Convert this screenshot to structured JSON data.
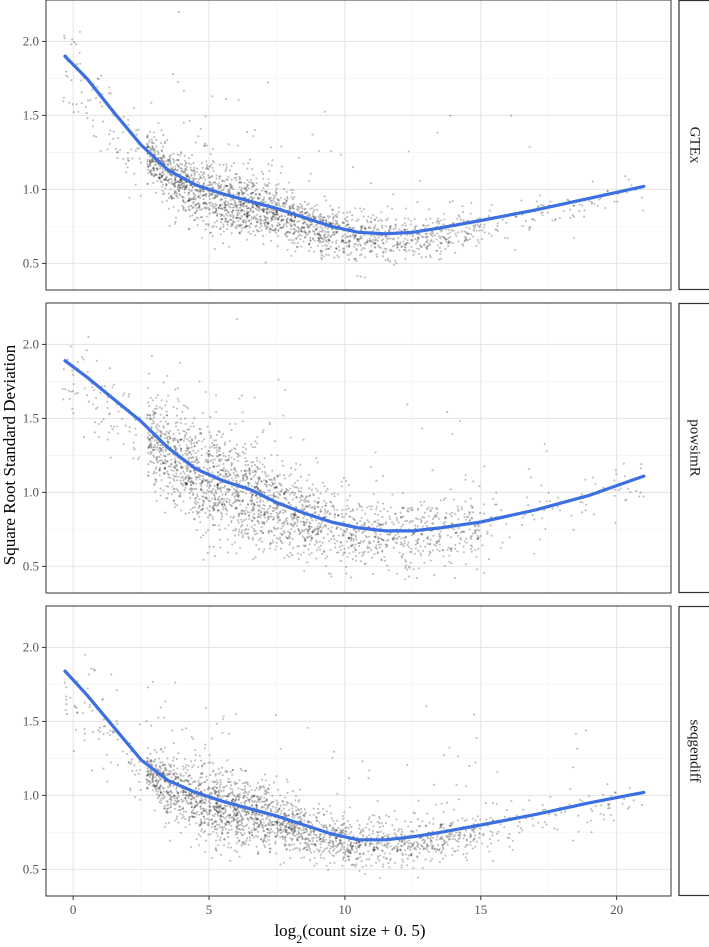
{
  "chart_data": {
    "type": "scatter",
    "xlabel_main": "log",
    "xlabel_sub": "2",
    "xlabel_rest": "(count size + 0. 5)",
    "ylabel": "Square Root Standard Deviation",
    "xlim": [
      -1,
      22
    ],
    "ylim": [
      0.32,
      2.28
    ],
    "x_ticks": [
      0,
      5,
      10,
      15,
      20
    ],
    "x_tick_labels": [
      "0",
      "5",
      "10",
      "15",
      "20"
    ],
    "y_ticks": [
      0.5,
      1.0,
      1.5,
      2.0
    ],
    "y_tick_labels": [
      "0.5",
      "1.0",
      "1.5",
      "2.0"
    ],
    "grid": true,
    "facet_placement": "right",
    "colors": {
      "points": "#000000",
      "smooth": "#3c6fe0",
      "panel_border": "#333333",
      "grid_major": "#e6e6e6",
      "grid_minor": "#f2f2f2"
    },
    "panels": [
      {
        "name": "GTEx",
        "smooth": {
          "x": [
            -0.3,
            0.5,
            1.5,
            2.5,
            3.5,
            4.5,
            5.5,
            6.5,
            7.5,
            8.5,
            9.5,
            10.5,
            11.5,
            12.5,
            13.5,
            15,
            17,
            19,
            21
          ],
          "y": [
            1.9,
            1.75,
            1.52,
            1.3,
            1.13,
            1.03,
            0.97,
            0.92,
            0.87,
            0.81,
            0.75,
            0.71,
            0.7,
            0.71,
            0.74,
            0.79,
            0.86,
            0.94,
            1.02
          ]
        }
      },
      {
        "name": "powsimR",
        "smooth": {
          "x": [
            -0.3,
            0.5,
            1.5,
            2.5,
            3.5,
            4.5,
            5.5,
            6.5,
            7.5,
            8.5,
            9.5,
            10.5,
            11.5,
            12.5,
            13.5,
            15,
            17,
            19,
            21
          ],
          "y": [
            1.89,
            1.78,
            1.63,
            1.48,
            1.3,
            1.16,
            1.08,
            1.02,
            0.93,
            0.86,
            0.8,
            0.76,
            0.74,
            0.74,
            0.76,
            0.8,
            0.88,
            0.98,
            1.11
          ]
        }
      },
      {
        "name": "seqgendiff",
        "smooth": {
          "x": [
            -0.3,
            0.5,
            1.5,
            2.5,
            3.5,
            4.5,
            5.5,
            6.5,
            7.5,
            8.5,
            9.5,
            10.5,
            11.5,
            12.5,
            13.5,
            15,
            17,
            19,
            21
          ],
          "y": [
            1.84,
            1.68,
            1.46,
            1.24,
            1.1,
            1.02,
            0.96,
            0.91,
            0.86,
            0.8,
            0.74,
            0.7,
            0.7,
            0.72,
            0.75,
            0.8,
            0.87,
            0.95,
            1.02
          ]
        }
      }
    ]
  }
}
